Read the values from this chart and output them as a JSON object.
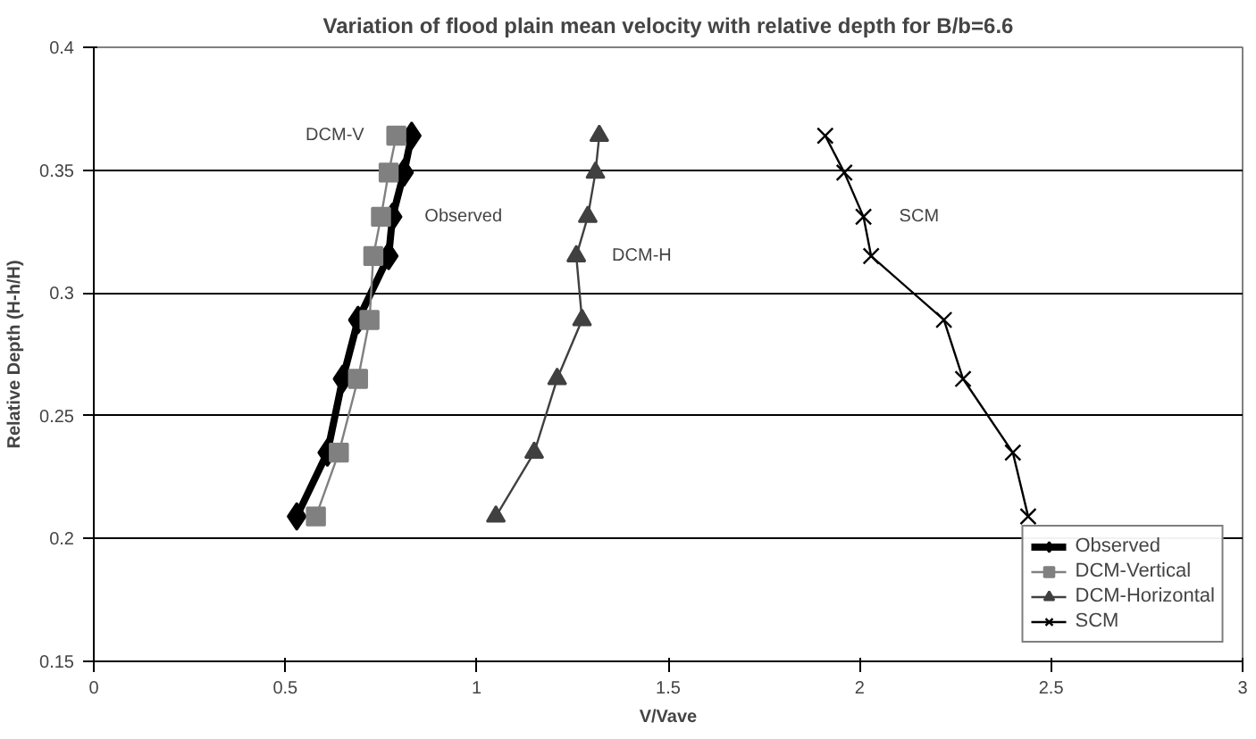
{
  "chart_data": {
    "type": "line",
    "title": "Variation of flood plain mean velocity with relative depth for B/b=6.6",
    "xlabel": "V/Vave",
    "ylabel": "Relative Depth (H-h/H)",
    "xlim": [
      0,
      3
    ],
    "ylim": [
      0.15,
      0.4
    ],
    "xticks": [
      0,
      0.5,
      1,
      1.5,
      2,
      2.5,
      3
    ],
    "yticks": [
      0.15,
      0.2,
      0.25,
      0.3,
      0.35,
      0.4
    ],
    "grid": "y",
    "legend": "bottom right",
    "series": [
      {
        "name": "Observed",
        "color": "#000000",
        "marker": "diamond",
        "x": [
          0.83,
          0.81,
          0.78,
          0.77,
          0.69,
          0.65,
          0.61,
          0.53
        ],
        "values": [
          0.364,
          0.349,
          0.331,
          0.315,
          0.289,
          0.265,
          0.235,
          0.209
        ]
      },
      {
        "name": "DCM-Vertical",
        "color": "#808080",
        "marker": "square",
        "x": [
          0.79,
          0.77,
          0.75,
          0.73,
          0.72,
          0.69,
          0.64,
          0.58
        ],
        "values": [
          0.364,
          0.349,
          0.331,
          0.315,
          0.289,
          0.265,
          0.235,
          0.209
        ]
      },
      {
        "name": "DCM-Horizontal",
        "color": "#404040",
        "marker": "triangle",
        "x": [
          1.32,
          1.31,
          1.29,
          1.26,
          1.275,
          1.21,
          1.15,
          1.05
        ],
        "values": [
          0.364,
          0.349,
          0.331,
          0.315,
          0.289,
          0.265,
          0.235,
          0.209
        ]
      },
      {
        "name": "SCM",
        "color": "#000000",
        "marker": "cross",
        "x": [
          1.91,
          1.96,
          2.01,
          2.03,
          2.22,
          2.27,
          2.4,
          2.44
        ],
        "values": [
          0.364,
          0.349,
          0.331,
          0.315,
          0.289,
          0.265,
          0.235,
          0.209
        ]
      }
    ],
    "annotations": [
      "DCM-V",
      "Observed",
      "DCM-H",
      "SCM"
    ]
  }
}
